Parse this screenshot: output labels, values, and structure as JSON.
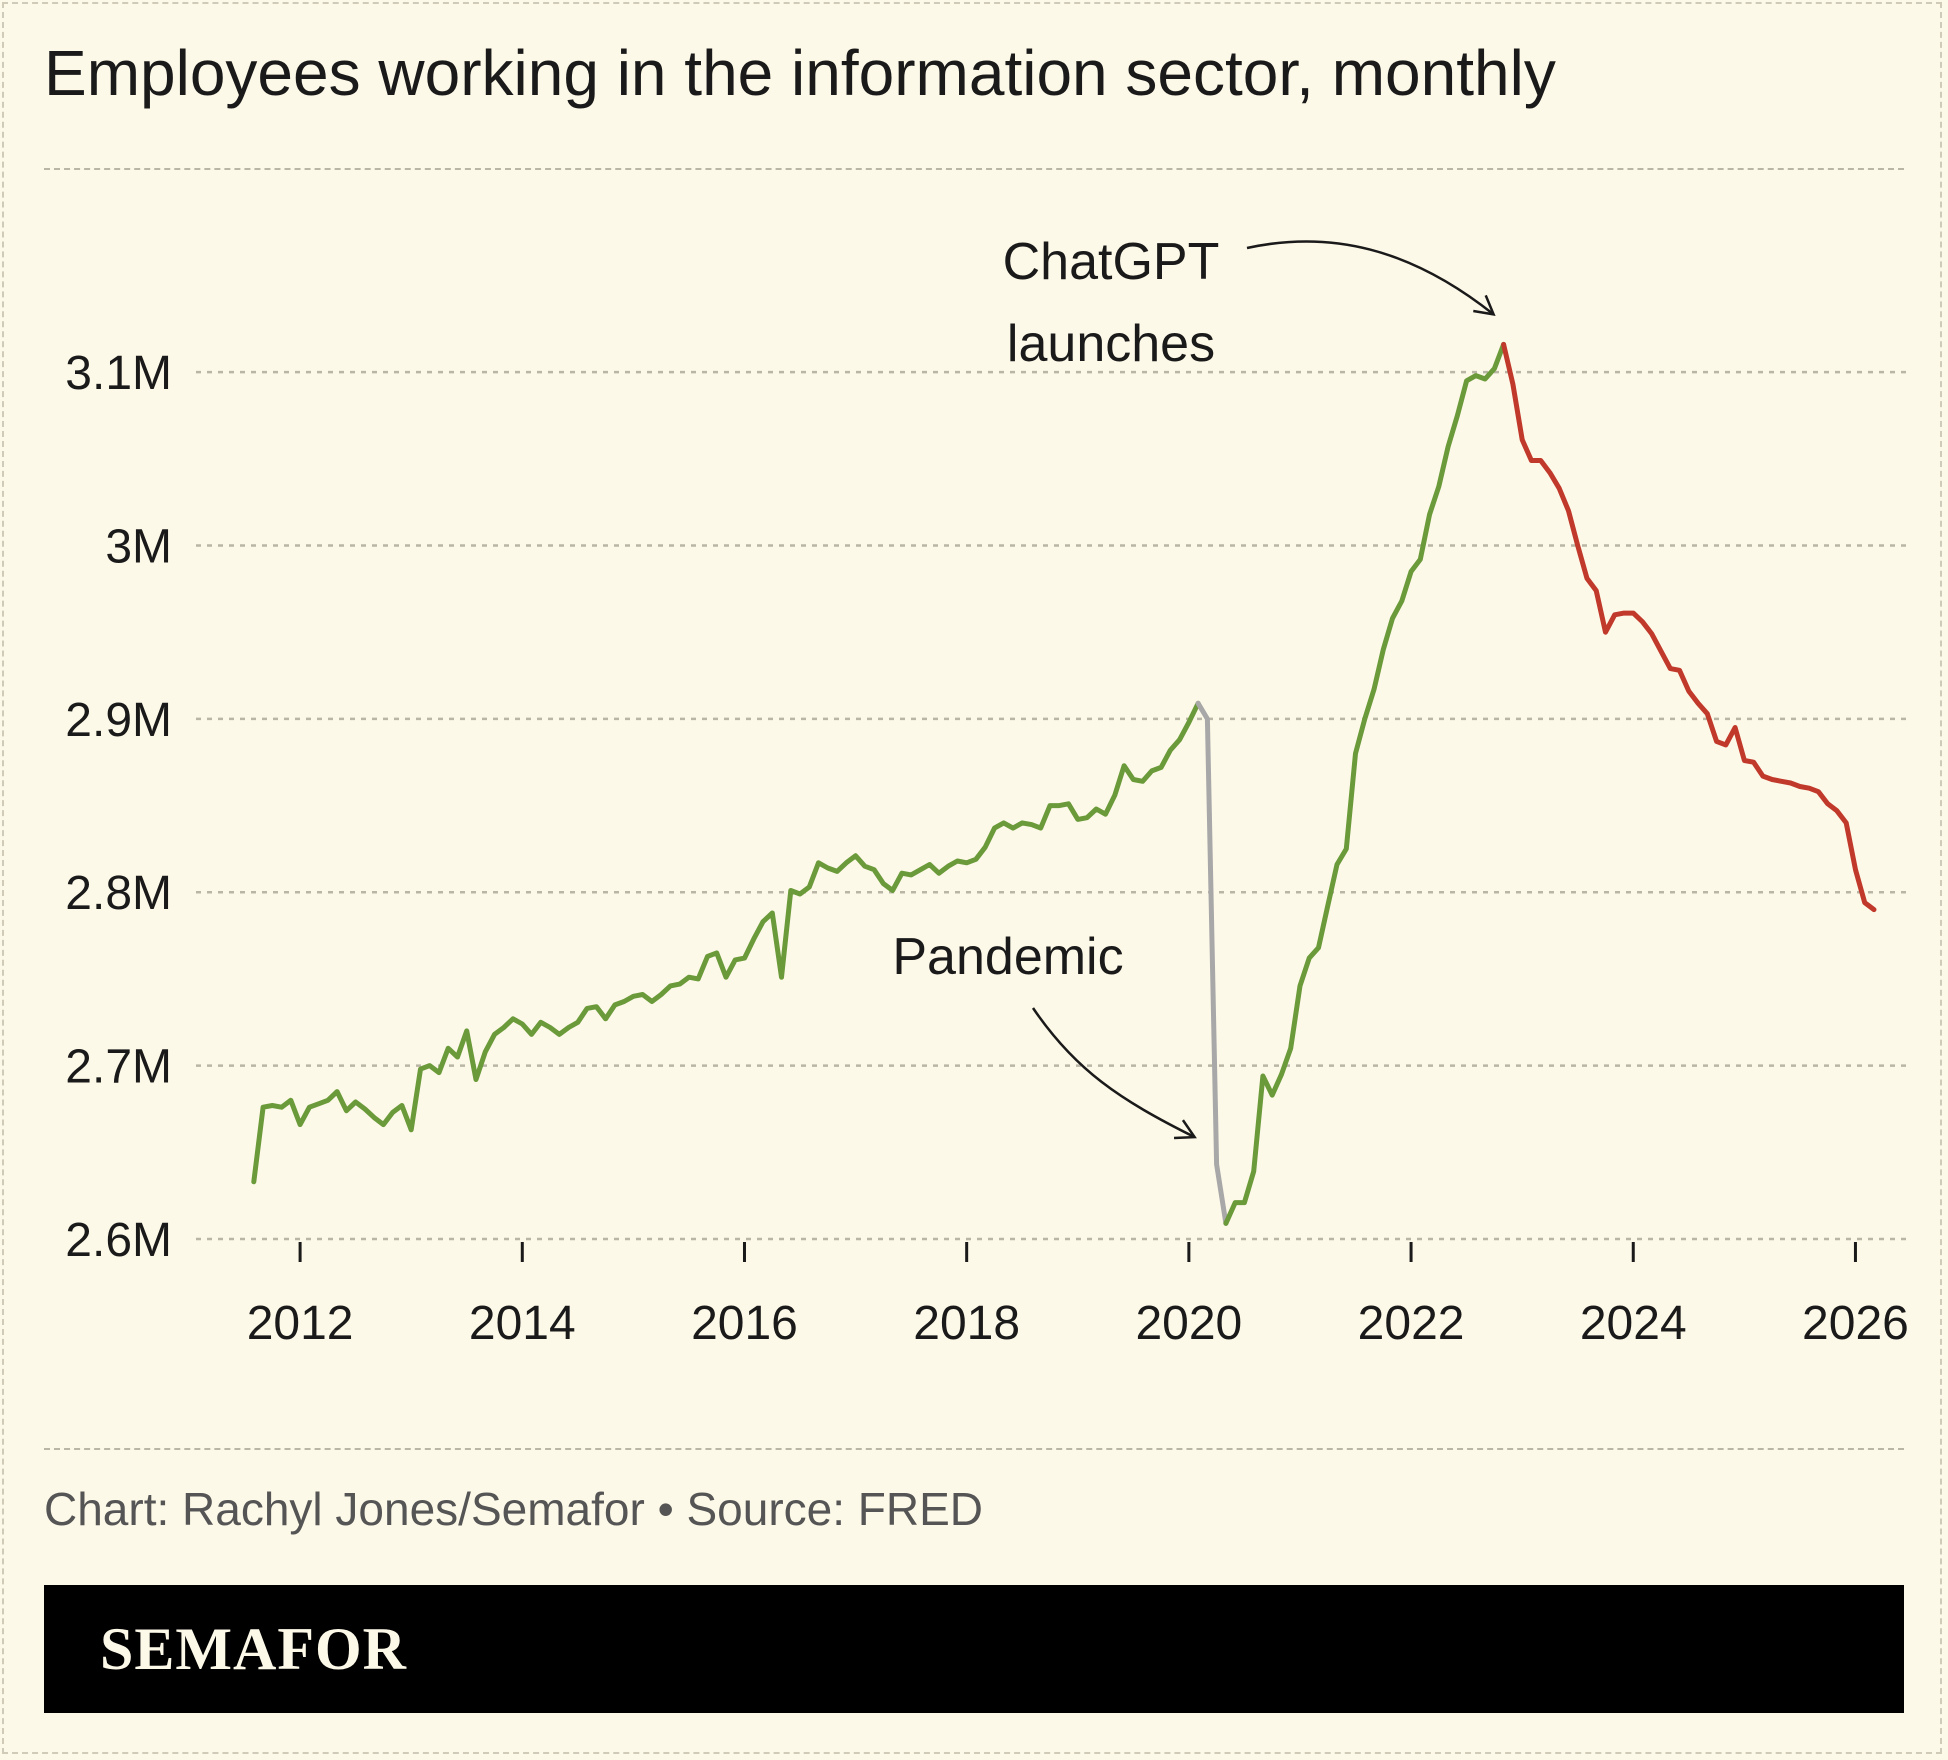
{
  "title": "Employees working in the information sector, monthly",
  "credit": "Chart: Rachyl Jones/Semafor • Source: FRED",
  "brand": "SEMAFOR",
  "colors": {
    "background": "#fdf9e8",
    "pre_pandemic": "#6b9a3a",
    "pandemic_drop": "#a8a8a8",
    "post_chatgpt": "#c0392b",
    "gridline": "#b9b6a6"
  },
  "chart_data": {
    "type": "line",
    "title": "Employees working in the information sector, monthly",
    "xlabel": "",
    "ylabel": "",
    "x_ticks": [
      "2012",
      "2014",
      "2016",
      "2018",
      "2020",
      "2022",
      "2024",
      "2026"
    ],
    "y_ticks": [
      {
        "value": 2600000,
        "label": "2.6M"
      },
      {
        "value": 2700000,
        "label": "2.7M"
      },
      {
        "value": 2800000,
        "label": "2.8M"
      },
      {
        "value": 2900000,
        "label": "2.9M"
      },
      {
        "value": 3000000,
        "label": "3M"
      },
      {
        "value": 3100000,
        "label": "3.1M"
      }
    ],
    "xlim": [
      "2011-01",
      "2026-07"
    ],
    "ylim": [
      2600000,
      3186000
    ],
    "grid": "horizontal dashed",
    "legend": "none",
    "annotations": [
      {
        "text": "ChatGPT launches",
        "lines": [
          "ChatGPT",
          "launches"
        ],
        "date": "2022-11",
        "value": 3116000
      },
      {
        "text": "Pandemic",
        "lines": [
          "Pandemic"
        ],
        "date": "2020-04",
        "value": 2668000
      }
    ],
    "series": [
      {
        "segment": "before pandemic",
        "color": "#6b9a3a",
        "points": [
          [
            "2011-08",
            2633000
          ],
          [
            "2011-09",
            2676000
          ],
          [
            "2011-10",
            2677000
          ],
          [
            "2011-11",
            2676000
          ],
          [
            "2011-12",
            2680000
          ],
          [
            "2012-01",
            2666000
          ],
          [
            "2012-02",
            2676000
          ],
          [
            "2012-03",
            2678000
          ],
          [
            "2012-04",
            2680000
          ],
          [
            "2012-05",
            2685000
          ],
          [
            "2012-06",
            2674000
          ],
          [
            "2012-07",
            2679000
          ],
          [
            "2012-08",
            2675000
          ],
          [
            "2012-09",
            2670000
          ],
          [
            "2012-10",
            2666000
          ],
          [
            "2012-11",
            2673000
          ],
          [
            "2012-12",
            2677000
          ],
          [
            "2013-01",
            2663000
          ],
          [
            "2013-02",
            2698000
          ],
          [
            "2013-03",
            2700000
          ],
          [
            "2013-04",
            2696000
          ],
          [
            "2013-05",
            2710000
          ],
          [
            "2013-06",
            2705000
          ],
          [
            "2013-07",
            2720000
          ],
          [
            "2013-08",
            2692000
          ],
          [
            "2013-09",
            2708000
          ],
          [
            "2013-10",
            2718000
          ],
          [
            "2013-11",
            2722000
          ],
          [
            "2013-12",
            2727000
          ],
          [
            "2014-01",
            2724000
          ],
          [
            "2014-02",
            2718000
          ],
          [
            "2014-03",
            2725000
          ],
          [
            "2014-04",
            2722000
          ],
          [
            "2014-05",
            2718000
          ],
          [
            "2014-06",
            2722000
          ],
          [
            "2014-07",
            2725000
          ],
          [
            "2014-08",
            2733000
          ],
          [
            "2014-09",
            2734000
          ],
          [
            "2014-10",
            2727000
          ],
          [
            "2014-11",
            2735000
          ],
          [
            "2014-12",
            2737000
          ],
          [
            "2015-01",
            2740000
          ],
          [
            "2015-02",
            2741000
          ],
          [
            "2015-03",
            2737000
          ],
          [
            "2015-04",
            2741000
          ],
          [
            "2015-05",
            2746000
          ],
          [
            "2015-06",
            2747000
          ],
          [
            "2015-07",
            2751000
          ],
          [
            "2015-08",
            2750000
          ],
          [
            "2015-09",
            2763000
          ],
          [
            "2015-10",
            2765000
          ],
          [
            "2015-11",
            2751000
          ],
          [
            "2015-12",
            2761000
          ],
          [
            "2016-01",
            2762000
          ],
          [
            "2016-02",
            2773000
          ],
          [
            "2016-03",
            2783000
          ],
          [
            "2016-04",
            2788000
          ],
          [
            "2016-05",
            2751000
          ],
          [
            "2016-06",
            2801000
          ],
          [
            "2016-07",
            2799000
          ],
          [
            "2016-08",
            2803000
          ],
          [
            "2016-09",
            2817000
          ],
          [
            "2016-10",
            2814000
          ],
          [
            "2016-11",
            2812000
          ],
          [
            "2016-12",
            2817000
          ],
          [
            "2017-01",
            2821000
          ],
          [
            "2017-02",
            2815000
          ],
          [
            "2017-03",
            2813000
          ],
          [
            "2017-04",
            2805000
          ],
          [
            "2017-05",
            2801000
          ],
          [
            "2017-06",
            2811000
          ],
          [
            "2017-07",
            2810000
          ],
          [
            "2017-08",
            2813000
          ],
          [
            "2017-09",
            2816000
          ],
          [
            "2017-10",
            2811000
          ],
          [
            "2017-11",
            2815000
          ],
          [
            "2017-12",
            2818000
          ],
          [
            "2018-01",
            2817000
          ],
          [
            "2018-02",
            2819000
          ],
          [
            "2018-03",
            2826000
          ],
          [
            "2018-04",
            2837000
          ],
          [
            "2018-05",
            2840000
          ],
          [
            "2018-06",
            2837000
          ],
          [
            "2018-07",
            2840000
          ],
          [
            "2018-08",
            2839000
          ],
          [
            "2018-09",
            2837000
          ],
          [
            "2018-10",
            2850000
          ],
          [
            "2018-11",
            2850000
          ],
          [
            "2018-12",
            2851000
          ],
          [
            "2019-01",
            2842000
          ],
          [
            "2019-02",
            2843000
          ],
          [
            "2019-03",
            2848000
          ],
          [
            "2019-04",
            2845000
          ],
          [
            "2019-05",
            2856000
          ],
          [
            "2019-06",
            2873000
          ],
          [
            "2019-07",
            2865000
          ],
          [
            "2019-08",
            2864000
          ],
          [
            "2019-09",
            2870000
          ],
          [
            "2019-10",
            2872000
          ],
          [
            "2019-11",
            2882000
          ],
          [
            "2019-12",
            2888000
          ],
          [
            "2020-01",
            2898000
          ],
          [
            "2020-02",
            2909000
          ]
        ]
      },
      {
        "segment": "pandemic drop",
        "color": "#a8a8a8",
        "points": [
          [
            "2020-02",
            2909000
          ],
          [
            "2020-03",
            2900000
          ],
          [
            "2020-04",
            2643000
          ],
          [
            "2020-05",
            2609000
          ]
        ]
      },
      {
        "segment": "recovery to ChatGPT launch",
        "color": "#6b9a3a",
        "points": [
          [
            "2020-05",
            2609000
          ],
          [
            "2020-06",
            2621000
          ],
          [
            "2020-07",
            2621000
          ],
          [
            "2020-08",
            2639000
          ],
          [
            "2020-09",
            2694000
          ],
          [
            "2020-10",
            2683000
          ],
          [
            "2020-11",
            2695000
          ],
          [
            "2020-12",
            2710000
          ],
          [
            "2021-01",
            2746000
          ],
          [
            "2021-02",
            2762000
          ],
          [
            "2021-03",
            2768000
          ],
          [
            "2021-04",
            2792000
          ],
          [
            "2021-05",
            2816000
          ],
          [
            "2021-06",
            2825000
          ],
          [
            "2021-07",
            2880000
          ],
          [
            "2021-08",
            2900000
          ],
          [
            "2021-09",
            2917000
          ],
          [
            "2021-10",
            2940000
          ],
          [
            "2021-11",
            2958000
          ],
          [
            "2021-12",
            2968000
          ],
          [
            "2022-01",
            2985000
          ],
          [
            "2022-02",
            2992000
          ],
          [
            "2022-03",
            3018000
          ],
          [
            "2022-04",
            3034000
          ],
          [
            "2022-05",
            3057000
          ],
          [
            "2022-06",
            3075000
          ],
          [
            "2022-07",
            3095000
          ],
          [
            "2022-08",
            3098000
          ],
          [
            "2022-09",
            3096000
          ],
          [
            "2022-10",
            3102000
          ],
          [
            "2022-11",
            3116000
          ]
        ]
      },
      {
        "segment": "after ChatGPT launch",
        "color": "#c0392b",
        "points": [
          [
            "2022-11",
            3116000
          ],
          [
            "2022-12",
            3093000
          ],
          [
            "2023-01",
            3061000
          ],
          [
            "2023-02",
            3049000
          ],
          [
            "2023-03",
            3049000
          ],
          [
            "2023-04",
            3042000
          ],
          [
            "2023-05",
            3033000
          ],
          [
            "2023-06",
            3020000
          ],
          [
            "2023-07",
            3000000
          ],
          [
            "2023-08",
            2981000
          ],
          [
            "2023-09",
            2974000
          ],
          [
            "2023-10",
            2950000
          ],
          [
            "2023-11",
            2960000
          ],
          [
            "2023-12",
            2961000
          ],
          [
            "2024-01",
            2961000
          ],
          [
            "2024-02",
            2956000
          ],
          [
            "2024-03",
            2949000
          ],
          [
            "2024-04",
            2939000
          ],
          [
            "2024-05",
            2929000
          ],
          [
            "2024-06",
            2928000
          ],
          [
            "2024-07",
            2916000
          ],
          [
            "2024-08",
            2909000
          ],
          [
            "2024-09",
            2903000
          ],
          [
            "2024-10",
            2887000
          ],
          [
            "2024-11",
            2885000
          ],
          [
            "2024-12",
            2895000
          ],
          [
            "2025-01",
            2876000
          ],
          [
            "2025-02",
            2875000
          ],
          [
            "2025-03",
            2867000
          ],
          [
            "2025-04",
            2865000
          ],
          [
            "2025-05",
            2864000
          ],
          [
            "2025-06",
            2863000
          ],
          [
            "2025-07",
            2861000
          ],
          [
            "2025-08",
            2860000
          ],
          [
            "2025-09",
            2858000
          ],
          [
            "2025-10",
            2851000
          ],
          [
            "2025-11",
            2847000
          ],
          [
            "2025-12",
            2840000
          ],
          [
            "2026-01",
            2813000
          ],
          [
            "2026-02",
            2794000
          ],
          [
            "2026-03",
            2790000
          ]
        ]
      }
    ]
  }
}
